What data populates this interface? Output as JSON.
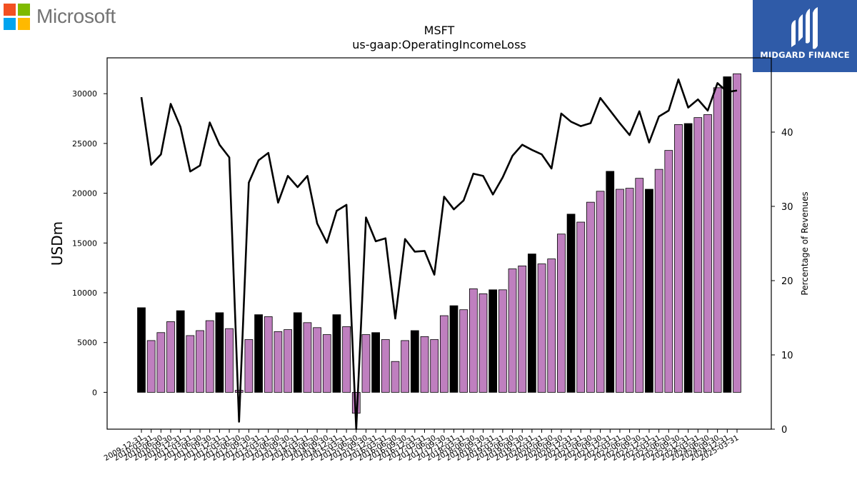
{
  "brand": {
    "company_logo_text": "Microsoft",
    "partner_logo_text": "MIDGARD FINANCE",
    "ms_colors": [
      "#f25022",
      "#7fba00",
      "#00a4ef",
      "#ffb900"
    ],
    "partner_color": "#2f5ba8"
  },
  "chart_data": {
    "type": "bar",
    "title": "MSFT",
    "subtitle": "us-gaap:OperatingIncomeLoss",
    "ylabel": "USDm",
    "y2label": "Percentage of Revenues",
    "ylim": [
      -3700,
      33600
    ],
    "y2lim": [
      0,
      50
    ],
    "yticks": [
      0,
      5000,
      10000,
      15000,
      20000,
      25000,
      30000
    ],
    "y2ticks": [
      0,
      10,
      20,
      30,
      40
    ],
    "bar_colors": {
      "annual": "#000000",
      "quarterly": "#bf7fbf"
    },
    "line_color": "#000000",
    "categories": [
      "2009-12-31",
      "2010-03-31",
      "2010-06-30",
      "2010-09-30",
      "2010-12-31",
      "2011-03-31",
      "2011-06-30",
      "2011-09-30",
      "2011-12-31",
      "2012-03-31",
      "2012-06-30",
      "2012-09-30",
      "2012-12-31",
      "2013-03-31",
      "2013-06-30",
      "2013-09-30",
      "2013-12-31",
      "2014-03-31",
      "2014-06-30",
      "2014-09-30",
      "2014-12-31",
      "2015-03-31",
      "2015-06-30",
      "2015-09-30",
      "2015-12-31",
      "2016-03-31",
      "2016-06-30",
      "2016-09-30",
      "2016-12-31",
      "2017-03-31",
      "2017-06-30",
      "2017-09-30",
      "2017-12-31",
      "2018-03-31",
      "2018-06-30",
      "2018-09-30",
      "2018-12-31",
      "2019-03-31",
      "2019-06-30",
      "2019-09-30",
      "2019-12-31",
      "2020-03-31",
      "2020-06-30",
      "2020-09-30",
      "2020-12-31",
      "2021-03-31",
      "2021-06-30",
      "2021-09-30",
      "2021-12-31",
      "2022-03-31",
      "2022-06-30",
      "2022-09-30",
      "2022-12-31",
      "2023-03-31",
      "2023-06-30",
      "2023-09-30",
      "2023-12-31",
      "2024-03-31",
      "2024-06-30",
      "2024-09-30",
      "2024-12-31",
      "2025-03-31"
    ],
    "series": [
      {
        "type": "bar",
        "values": [
          8500,
          5200,
          6000,
          7100,
          8200,
          5700,
          6200,
          7200,
          8000,
          6400,
          200,
          5300,
          7800,
          7600,
          6100,
          6300,
          8000,
          7000,
          6500,
          5800,
          7800,
          6600,
          -2100,
          5800,
          6000,
          5300,
          3100,
          5200,
          6200,
          5600,
          5300,
          7700,
          8700,
          8300,
          10400,
          9900,
          10300,
          10300,
          12400,
          12700,
          13900,
          12900,
          13400,
          15900,
          17900,
          17100,
          19100,
          20200,
          22200,
          20400,
          20500,
          21500,
          20400,
          22400,
          24300,
          26900,
          27000,
          27600,
          27900,
          30600,
          31700,
          32000
        ],
        "annual": [
          true,
          false,
          false,
          false,
          true,
          false,
          false,
          false,
          true,
          false,
          false,
          false,
          true,
          false,
          false,
          false,
          true,
          false,
          false,
          false,
          true,
          false,
          false,
          false,
          true,
          false,
          false,
          false,
          true,
          false,
          false,
          false,
          true,
          false,
          false,
          false,
          true,
          false,
          false,
          false,
          true,
          false,
          false,
          false,
          true,
          false,
          false,
          false,
          true,
          false,
          false,
          false,
          true,
          false,
          false,
          false,
          true,
          false,
          false,
          false,
          true,
          false
        ]
      },
      {
        "type": "line",
        "axis": "right",
        "values": [
          44.7,
          35.6,
          37.0,
          43.8,
          40.7,
          34.7,
          35.5,
          41.3,
          38.3,
          36.6,
          1.0,
          33.2,
          36.2,
          37.2,
          30.5,
          34.1,
          32.6,
          34.1,
          27.7,
          25.1,
          29.4,
          30.2,
          0.0,
          28.5,
          25.3,
          25.7,
          14.9,
          25.6,
          23.9,
          24.0,
          20.8,
          31.3,
          29.6,
          30.8,
          34.4,
          34.1,
          31.6,
          33.9,
          36.8,
          38.3,
          37.6,
          37.0,
          35.1,
          42.5,
          41.4,
          40.8,
          41.2,
          44.6,
          42.9,
          41.2,
          39.6,
          42.8,
          38.6,
          42.1,
          42.9,
          47.1,
          43.3,
          44.4,
          42.9,
          46.6,
          45.4,
          45.6
        ]
      }
    ]
  }
}
